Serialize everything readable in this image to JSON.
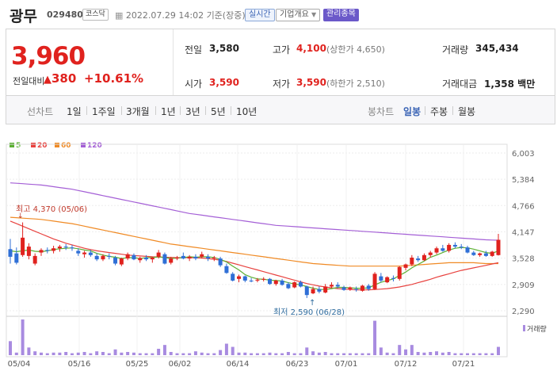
{
  "header": {
    "name": "광무",
    "code": "029480",
    "market": "코스닥",
    "datetime": "2022.07.29 14:02 기준(장중)",
    "realtime": "실시간",
    "company_info": "기업개요",
    "managed": "관리종목"
  },
  "summary": {
    "price": "3,960",
    "change_label": "전일대비",
    "change_value": "380",
    "change_pct": "+10.61%",
    "prev_label": "전일",
    "prev_value": "3,580",
    "high_label": "고가",
    "high_value": "4,100",
    "high_limit": "(상한가 4,650)",
    "volume_label": "거래량",
    "volume_value": "345,434",
    "open_label": "시가",
    "open_value": "3,590",
    "low_label": "저가",
    "low_value": "3,590",
    "low_limit": "(하한가 2,510)",
    "amount_label": "거래대금",
    "amount_value": "1,358",
    "amount_unit": "백만"
  },
  "periods": {
    "line_label": "선차트",
    "line_items": [
      "1일",
      "1주일",
      "3개월",
      "1년",
      "3년",
      "5년",
      "10년"
    ],
    "candle_label": "봉차트",
    "candle_items": [
      "일봉",
      "주봉",
      "월봉"
    ],
    "candle_active": "일봉"
  },
  "colors": {
    "up": "#e0221e",
    "down": "#2f6fd6",
    "ma5": "#5bb033",
    "ma20": "#e8423f",
    "ma60": "#f08a24",
    "ma120": "#a45fd6",
    "volume": "#a88be0"
  },
  "chart_data": {
    "type": "candlestick",
    "title": "",
    "legend": [
      "5",
      "20",
      "60",
      "120"
    ],
    "volume_legend": "거래량",
    "y_ticks": [
      "6,003",
      "5,384",
      "4,766",
      "4,147",
      "3,528",
      "2,909",
      "2,290"
    ],
    "ylim": [
      2290,
      6003
    ],
    "x_ticks": [
      "05/04",
      "05/16",
      "05/25",
      "06/02",
      "06/14",
      "06/23",
      "07/01",
      "07/12",
      "07/21"
    ],
    "annotations": {
      "high": "최고 4,370 (05/06)",
      "low": "최저 2,590 (06/28)"
    },
    "candles": [
      [
        3740,
        3980,
        3400,
        3560
      ],
      [
        3640,
        3780,
        3380,
        3420
      ],
      [
        3600,
        4370,
        3560,
        4010
      ],
      [
        3580,
        3880,
        3500,
        3800
      ],
      [
        3400,
        3640,
        3360,
        3580
      ],
      [
        3660,
        3760,
        3580,
        3720
      ],
      [
        3720,
        3780,
        3640,
        3700
      ],
      [
        3700,
        3820,
        3640,
        3760
      ],
      [
        3760,
        3840,
        3680,
        3800
      ],
      [
        3800,
        3860,
        3720,
        3780
      ],
      [
        3780,
        3840,
        3700,
        3760
      ],
      [
        3700,
        3760,
        3580,
        3640
      ],
      [
        3620,
        3700,
        3540,
        3660
      ],
      [
        3660,
        3720,
        3560,
        3600
      ],
      [
        3580,
        3640,
        3460,
        3500
      ],
      [
        3500,
        3620,
        3460,
        3580
      ],
      [
        3580,
        3640,
        3500,
        3560
      ],
      [
        3540,
        3580,
        3360,
        3400
      ],
      [
        3380,
        3540,
        3340,
        3520
      ],
      [
        3520,
        3660,
        3480,
        3620
      ],
      [
        3600,
        3640,
        3480,
        3500
      ],
      [
        3480,
        3560,
        3420,
        3530
      ],
      [
        3540,
        3600,
        3460,
        3500
      ],
      [
        3500,
        3560,
        3420,
        3540
      ],
      [
        3560,
        3720,
        3520,
        3660
      ],
      [
        3620,
        3660,
        3380,
        3400
      ],
      [
        3420,
        3560,
        3380,
        3520
      ],
      [
        3520,
        3580,
        3480,
        3540
      ],
      [
        3580,
        3660,
        3500,
        3520
      ],
      [
        3520,
        3600,
        3460,
        3560
      ],
      [
        3560,
        3620,
        3480,
        3520
      ],
      [
        3560,
        3680,
        3520,
        3620
      ],
      [
        3560,
        3620,
        3460,
        3520
      ],
      [
        3520,
        3580,
        3460,
        3540
      ],
      [
        3520,
        3560,
        3320,
        3360
      ],
      [
        3340,
        3400,
        3160,
        3180
      ],
      [
        3160,
        3200,
        2980,
        3000
      ],
      [
        3040,
        3140,
        2960,
        3100
      ],
      [
        3100,
        3120,
        2960,
        3000
      ],
      [
        3000,
        3060,
        2960,
        2980
      ],
      [
        3000,
        3060,
        2960,
        3020
      ],
      [
        3020,
        3080,
        2980,
        3040
      ],
      [
        3040,
        3060,
        2900,
        2920
      ],
      [
        2920,
        3020,
        2880,
        3000
      ],
      [
        3000,
        3040,
        2880,
        2900
      ],
      [
        2920,
        2960,
        2800,
        2820
      ],
      [
        2840,
        2980,
        2820,
        2960
      ],
      [
        2960,
        3000,
        2840,
        2860
      ],
      [
        2860,
        2880,
        2590,
        2660
      ],
      [
        2700,
        2860,
        2680,
        2800
      ],
      [
        2800,
        2860,
        2700,
        2740
      ],
      [
        2720,
        2920,
        2700,
        2860
      ],
      [
        2860,
        2960,
        2820,
        2900
      ],
      [
        2900,
        2960,
        2820,
        2860
      ],
      [
        2840,
        2880,
        2760,
        2780
      ],
      [
        2800,
        2860,
        2760,
        2840
      ],
      [
        2800,
        2860,
        2740,
        2780
      ],
      [
        2760,
        2900,
        2740,
        2880
      ],
      [
        2880,
        2920,
        2760,
        2800
      ],
      [
        2800,
        3200,
        2780,
        3160
      ],
      [
        3100,
        3180,
        2960,
        3000
      ],
      [
        2960,
        3100,
        2940,
        3080
      ],
      [
        3060,
        3120,
        2980,
        3040
      ],
      [
        3040,
        3340,
        3000,
        3320
      ],
      [
        3300,
        3400,
        3240,
        3380
      ],
      [
        3380,
        3600,
        3340,
        3540
      ],
      [
        3520,
        3580,
        3440,
        3480
      ],
      [
        3480,
        3640,
        3460,
        3600
      ],
      [
        3600,
        3700,
        3540,
        3660
      ],
      [
        3660,
        3800,
        3620,
        3760
      ],
      [
        3760,
        3840,
        3680,
        3700
      ],
      [
        3700,
        3880,
        3660,
        3840
      ],
      [
        3840,
        3900,
        3760,
        3800
      ],
      [
        3800,
        3860,
        3740,
        3780
      ],
      [
        3780,
        3820,
        3640,
        3660
      ],
      [
        3660,
        3700,
        3580,
        3600
      ],
      [
        3600,
        3660,
        3560,
        3640
      ],
      [
        3640,
        3700,
        3560,
        3580
      ],
      [
        3580,
        3700,
        3560,
        3680
      ],
      [
        3600,
        4100,
        3590,
        3960
      ]
    ],
    "volume": [
      2.2,
      0.4,
      5.6,
      1.2,
      0.6,
      0.4,
      0.3,
      0.4,
      0.4,
      0.5,
      0.3,
      0.4,
      0.5,
      0.3,
      0.6,
      0.5,
      0.3,
      0.9,
      0.4,
      0.5,
      0.4,
      0.3,
      0.3,
      0.3,
      1.0,
      1.6,
      0.5,
      0.3,
      0.3,
      0.3,
      0.6,
      0.4,
      0.3,
      0.3,
      0.8,
      1.8,
      1.3,
      0.4,
      0.4,
      0.3,
      0.3,
      0.3,
      0.4,
      0.3,
      0.3,
      0.5,
      0.3,
      0.3,
      1.2,
      0.6,
      0.4,
      0.5,
      0.3,
      0.3,
      0.3,
      0.3,
      0.3,
      0.3,
      0.3,
      5.4,
      1.2,
      0.4,
      0.3,
      1.6,
      0.9,
      1.6,
      0.5,
      0.4,
      0.5,
      0.6,
      0.4,
      0.5,
      0.3,
      0.3,
      0.3,
      0.3,
      0.3,
      0.3,
      0.3,
      1.3
    ],
    "ma5": [
      3700,
      3680,
      3700,
      3720,
      3690,
      3680,
      3700,
      3730,
      3750,
      3760,
      3770,
      3750,
      3720,
      3700,
      3640,
      3600,
      3570,
      3550,
      3520,
      3540,
      3540,
      3520,
      3540,
      3540,
      3560,
      3540,
      3520,
      3530,
      3540,
      3560,
      3550,
      3560,
      3560,
      3540,
      3500,
      3440,
      3340,
      3250,
      3140,
      3080,
      3040,
      3030,
      3010,
      3000,
      2990,
      2950,
      2920,
      2900,
      2860,
      2820,
      2790,
      2790,
      2810,
      2840,
      2840,
      2830,
      2820,
      2820,
      2830,
      2900,
      2960,
      3000,
      3040,
      3120,
      3200,
      3300,
      3380,
      3460,
      3550,
      3600,
      3660,
      3720,
      3760,
      3780,
      3770,
      3740,
      3700,
      3660,
      3640,
      3700
    ],
    "ma20": [
      4400,
      4340,
      4280,
      4220,
      4160,
      4100,
      4040,
      3980,
      3930,
      3880,
      3840,
      3800,
      3760,
      3730,
      3700,
      3680,
      3660,
      3640,
      3620,
      3600,
      3590,
      3580,
      3570,
      3560,
      3555,
      3550,
      3545,
      3540,
      3540,
      3540,
      3535,
      3530,
      3520,
      3500,
      3480,
      3450,
      3410,
      3370,
      3330,
      3290,
      3250,
      3210,
      3170,
      3130,
      3090,
      3050,
      3010,
      2970,
      2930,
      2900,
      2870,
      2850,
      2830,
      2810,
      2800,
      2790,
      2780,
      2780,
      2780,
      2790,
      2800,
      2810,
      2830,
      2850,
      2880,
      2910,
      2950,
      2990,
      3030,
      3080,
      3120,
      3160,
      3200,
      3240,
      3270,
      3300,
      3330,
      3360,
      3390,
      3420
    ],
    "ma60": [
      4490,
      4480,
      4470,
      4460,
      4450,
      4440,
      4420,
      4400,
      4380,
      4360,
      4340,
      4310,
      4280,
      4250,
      4220,
      4190,
      4160,
      4130,
      4100,
      4070,
      4040,
      4010,
      3980,
      3950,
      3920,
      3890,
      3860,
      3840,
      3820,
      3800,
      3780,
      3760,
      3740,
      3720,
      3700,
      3680,
      3660,
      3640,
      3620,
      3600,
      3580,
      3560,
      3540,
      3520,
      3500,
      3480,
      3460,
      3440,
      3420,
      3400,
      3390,
      3380,
      3370,
      3360,
      3350,
      3340,
      3340,
      3340,
      3340,
      3340,
      3340,
      3340,
      3340,
      3340,
      3350,
      3360,
      3370,
      3380,
      3390,
      3400,
      3410,
      3420,
      3420,
      3420,
      3420,
      3420,
      3410,
      3400,
      3400,
      3400
    ],
    "ma120": [
      5300,
      5290,
      5280,
      5270,
      5260,
      5250,
      5230,
      5210,
      5190,
      5170,
      5150,
      5120,
      5090,
      5060,
      5030,
      5000,
      4970,
      4940,
      4910,
      4880,
      4850,
      4820,
      4790,
      4760,
      4730,
      4700,
      4670,
      4640,
      4610,
      4580,
      4560,
      4540,
      4520,
      4500,
      4480,
      4460,
      4440,
      4420,
      4400,
      4380,
      4360,
      4340,
      4320,
      4300,
      4290,
      4280,
      4270,
      4260,
      4250,
      4240,
      4230,
      4220,
      4210,
      4200,
      4190,
      4180,
      4170,
      4160,
      4150,
      4140,
      4130,
      4120,
      4110,
      4100,
      4090,
      4080,
      4070,
      4060,
      4050,
      4040,
      4030,
      4020,
      4010,
      4000,
      3990,
      3980,
      3970,
      3960,
      3955,
      3950
    ]
  }
}
